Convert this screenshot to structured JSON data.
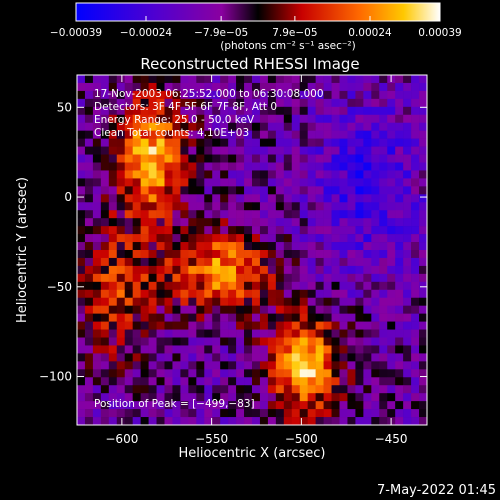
{
  "chart_data": {
    "type": "heatmap",
    "title": "Reconstructed RHESSI Image",
    "xlabel": "Heliocentric X (arcsec)",
    "ylabel": "Heliocentric Y (arcsec)",
    "xlim": [
      -625,
      -430
    ],
    "ylim": [
      -127,
      68
    ],
    "x_ticks": [
      -600,
      -550,
      -500,
      -450
    ],
    "x_tick_labels": [
      "−600",
      "−550",
      "−500",
      "−450"
    ],
    "y_ticks": [
      -100,
      -50,
      0,
      50
    ],
    "y_tick_labels": [
      "−100",
      "−50",
      "0",
      "50"
    ],
    "annotations": [
      "17-Nov-2003 06:25:52.000 to 06:30:08.000",
      "Detectors: 3F 4F 5F 6F 7F 8F, Att 0",
      "Energy Range: 25.0 - 50.0 keV",
      "Clean    Total counts: 4.10E+03"
    ],
    "peak_label": "Position of Peak = [−499,−83]",
    "colorbar": {
      "range": [
        -0.00039,
        0.00039
      ],
      "ticks": [
        -0.00039,
        -0.00024,
        -7.9e-05,
        7.9e-05,
        0.00024,
        0.00039
      ],
      "tick_labels": [
        "−0.00039",
        "−0.00024",
        "−7.9e−05",
        "7.9e−05",
        "0.00024",
        "0.00039"
      ],
      "unit_label": "(photons cm⁻² s⁻¹ asec⁻²)",
      "colors": [
        "#0000ff",
        "#5b00c8",
        "#8a00a0",
        "#000000",
        "#c00000",
        "#ff6000",
        "#ffc000",
        "#ffffff"
      ]
    },
    "grid": false
  },
  "footer": {
    "date_stamp": "7-May-2022 01:45"
  }
}
